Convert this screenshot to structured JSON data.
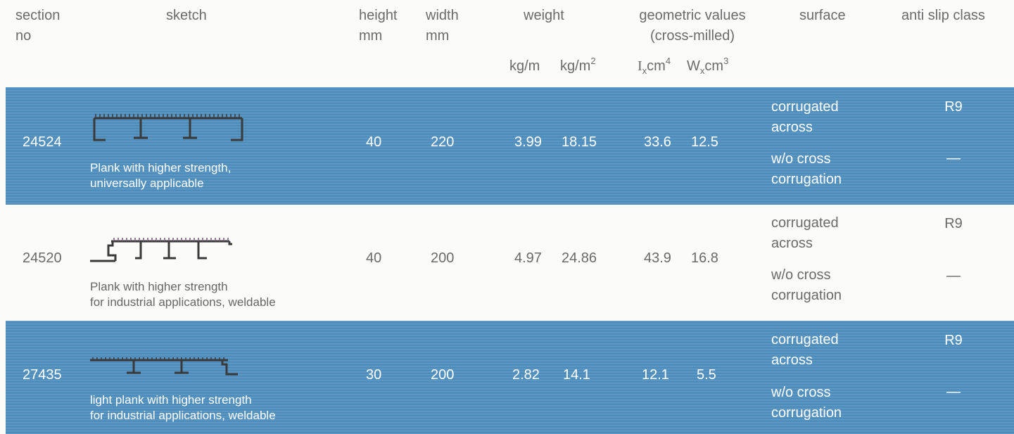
{
  "header": {
    "section_no": [
      "section",
      "no"
    ],
    "sketch": "sketch",
    "height": [
      "height",
      "mm"
    ],
    "width": [
      "width",
      "mm"
    ],
    "weight": "weight",
    "weight_kgm": "kg/m",
    "weight_kgm2_base": "kg/m",
    "weight_kgm2_sup": "2",
    "geometric": [
      "geometric values",
      "(cross-milled)"
    ],
    "ix_I": "I",
    "ix_sub": "x",
    "ix_unit": "cm",
    "ix_sup": "4",
    "wx_W": "W",
    "wx_sub": "x",
    "wx_unit": "cm",
    "wx_sup": "3",
    "surface": "surface",
    "anti_slip": "anti slip class"
  },
  "rows": [
    {
      "section": "24524",
      "desc": [
        "Plank with higher strength,",
        "universally applicable"
      ],
      "height": "40",
      "width": "220",
      "kg_m": "3.99",
      "kg_m2": "18.15",
      "ix": "33.6",
      "wx": "12.5",
      "surface1": [
        "corrugated",
        "across"
      ],
      "class1": "R9",
      "surface2": [
        "w/o cross",
        "corrugation"
      ],
      "class2": "—"
    },
    {
      "section": "24520",
      "desc": [
        "Plank with higher strength",
        "for industrial applications, weldable"
      ],
      "height": "40",
      "width": "200",
      "kg_m": "4.97",
      "kg_m2": "24.86",
      "ix": "43.9",
      "wx": "16.8",
      "surface1": [
        "corrugated",
        "across"
      ],
      "class1": "R9",
      "surface2": [
        "w/o cross",
        "corrugation"
      ],
      "class2": "—"
    },
    {
      "section": "27435",
      "desc": [
        "light plank with higher strength",
        "for industrial applications, weldable"
      ],
      "height": "30",
      "width": "200",
      "kg_m": "2.82",
      "kg_m2": "14.1",
      "ix": "12.1",
      "wx": "5.5",
      "surface1": [
        "corrugated",
        "across"
      ],
      "class1": "R9",
      "surface2": [
        "w/o cross",
        "corrugation"
      ],
      "class2": "—"
    }
  ]
}
